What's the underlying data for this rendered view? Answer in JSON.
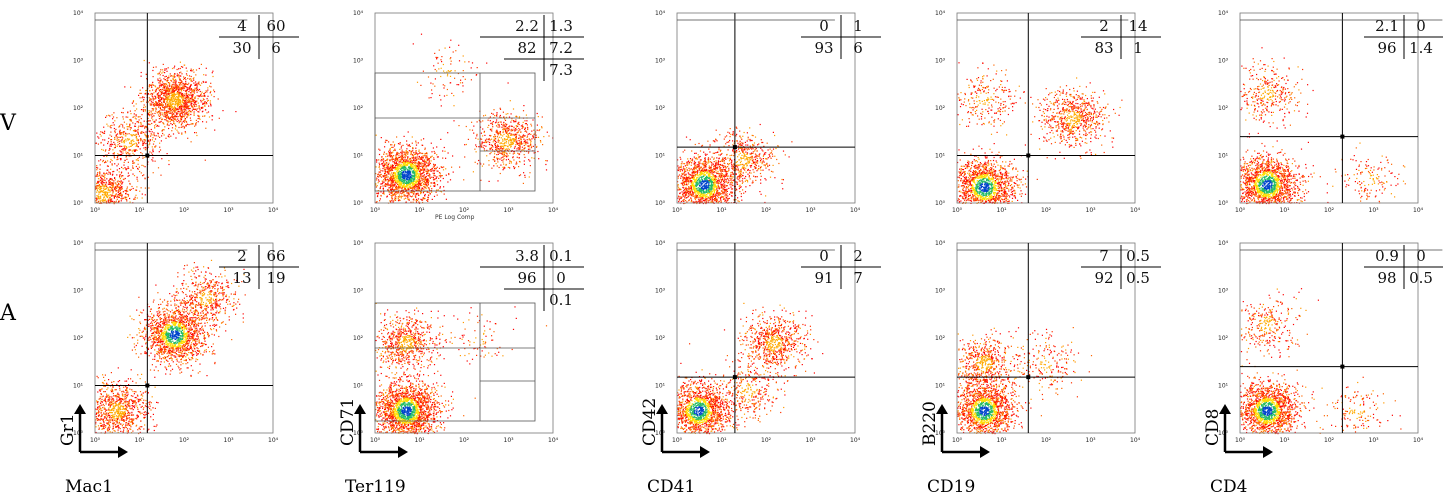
{
  "row_labels": [
    "V",
    "A"
  ],
  "chart_data": [
    {
      "type": "scatter",
      "row": "V",
      "xlabel": "",
      "ylabel": "",
      "x_scale": "log",
      "y_scale": "log",
      "xlim": [
        1,
        10000
      ],
      "ylim": [
        1,
        10000
      ],
      "tick_labels": [
        "10⁰",
        "10¹",
        "10²",
        "10³",
        "10⁴"
      ],
      "gate": {
        "x": 15,
        "y": 10
      },
      "quadrants": {
        "rows": [
          [
            "4",
            "60"
          ],
          [
            "30",
            "6"
          ]
        ]
      },
      "clusters": [
        {
          "x": 1.5,
          "y": 1.6,
          "n": 900
        },
        {
          "x": 60,
          "y": 150,
          "n": 1400
        },
        {
          "x": 6,
          "y": 20,
          "n": 500
        }
      ]
    },
    {
      "type": "scatter",
      "row": "V",
      "xlabel": "",
      "ylabel": "",
      "x_scale": "log",
      "y_scale": "log",
      "xlim": [
        1,
        10000
      ],
      "ylim": [
        1,
        10000
      ],
      "tick_labels": [
        "10⁰",
        "10¹",
        "10²",
        "10³",
        "10⁴"
      ],
      "plot_label": "PE Log Comp",
      "quadrants": {
        "rows": [
          [
            "2.2",
            "1.3"
          ],
          [
            "82",
            "7.2"
          ],
          [
            "",
            "7.3"
          ]
        ]
      },
      "clusters": [
        {
          "x": 5,
          "y": 4,
          "n": 1900,
          "hot": true
        },
        {
          "x": 900,
          "y": 20,
          "n": 700
        },
        {
          "x": 40,
          "y": 600,
          "n": 90
        }
      ]
    },
    {
      "type": "scatter",
      "row": "V",
      "xlabel": "",
      "ylabel": "",
      "x_scale": "log",
      "y_scale": "log",
      "xlim": [
        1,
        10000
      ],
      "ylim": [
        1,
        10000
      ],
      "tick_labels": [
        "10⁰",
        "10¹",
        "10²",
        "10³",
        "10⁴"
      ],
      "gate": {
        "x": 20,
        "y": 15
      },
      "quadrants": {
        "rows": [
          [
            "0",
            "1"
          ],
          [
            "93",
            "6"
          ]
        ]
      },
      "clusters": [
        {
          "x": 4,
          "y": 2.5,
          "n": 1600,
          "hot": true
        },
        {
          "x": 30,
          "y": 8,
          "n": 500
        }
      ]
    },
    {
      "type": "scatter",
      "row": "V",
      "xlabel": "",
      "ylabel": "",
      "x_scale": "log",
      "y_scale": "log",
      "xlim": [
        1,
        10000
      ],
      "ylim": [
        1,
        10000
      ],
      "tick_labels": [
        "10⁰",
        "10¹",
        "10²",
        "10³",
        "10⁴"
      ],
      "gate": {
        "x": 40,
        "y": 10
      },
      "quadrants": {
        "rows": [
          [
            "2",
            "14"
          ],
          [
            "83",
            "1"
          ]
        ]
      },
      "clusters": [
        {
          "x": 4,
          "y": 2.2,
          "n": 1500,
          "hot": true
        },
        {
          "x": 400,
          "y": 60,
          "n": 700
        },
        {
          "x": 4,
          "y": 150,
          "n": 250
        }
      ]
    },
    {
      "type": "scatter",
      "row": "V",
      "xlabel": "",
      "ylabel": "",
      "x_scale": "log",
      "y_scale": "log",
      "xlim": [
        1,
        10000
      ],
      "ylim": [
        1,
        10000
      ],
      "tick_labels": [
        "10⁰",
        "10¹",
        "10²",
        "10³",
        "10⁴"
      ],
      "gate": {
        "x": 200,
        "y": 25
      },
      "quadrants": {
        "rows": [
          [
            "2.1",
            "0"
          ],
          [
            "96",
            "1.4"
          ]
        ]
      },
      "clusters": [
        {
          "x": 4,
          "y": 2.5,
          "n": 1600,
          "hot": true
        },
        {
          "x": 4,
          "y": 200,
          "n": 350
        },
        {
          "x": 800,
          "y": 3,
          "n": 150
        }
      ]
    },
    {
      "type": "scatter",
      "row": "A",
      "xlabel": "Mac1",
      "ylabel": "Gr1",
      "x_scale": "log",
      "y_scale": "log",
      "xlim": [
        1,
        10000
      ],
      "ylim": [
        1,
        10000
      ],
      "tick_labels": [
        "10⁰",
        "10¹",
        "10²",
        "10³",
        "10⁴"
      ],
      "gate": {
        "x": 15,
        "y": 10
      },
      "quadrants": {
        "rows": [
          [
            "2",
            "66"
          ],
          [
            "13",
            "19"
          ]
        ]
      },
      "clusters": [
        {
          "x": 3,
          "y": 3,
          "n": 900
        },
        {
          "x": 60,
          "y": 120,
          "n": 1500,
          "hot": true
        },
        {
          "x": 300,
          "y": 700,
          "n": 500
        }
      ]
    },
    {
      "type": "scatter",
      "row": "A",
      "xlabel": "Ter119",
      "ylabel": "CD71",
      "x_scale": "log",
      "y_scale": "log",
      "xlim": [
        1,
        10000
      ],
      "ylim": [
        1,
        10000
      ],
      "tick_labels": [
        "10⁰",
        "10¹",
        "10²",
        "10³",
        "10⁴"
      ],
      "quadrants": {
        "rows": [
          [
            "3.8",
            "0.1"
          ],
          [
            "96",
            "0"
          ],
          [
            "",
            "0.1"
          ]
        ]
      },
      "clusters": [
        {
          "x": 5,
          "y": 3,
          "n": 1900,
          "hot": true
        },
        {
          "x": 5,
          "y": 80,
          "n": 700
        },
        {
          "x": 200,
          "y": 100,
          "n": 80
        }
      ]
    },
    {
      "type": "scatter",
      "row": "A",
      "xlabel": "CD41",
      "ylabel": "CD42",
      "x_scale": "log",
      "y_scale": "log",
      "xlim": [
        1,
        10000
      ],
      "ylim": [
        1,
        10000
      ],
      "tick_labels": [
        "10⁰",
        "10¹",
        "10²",
        "10³",
        "10⁴"
      ],
      "gate": {
        "x": 20,
        "y": 15
      },
      "quadrants": {
        "rows": [
          [
            "0",
            "2"
          ],
          [
            "91",
            "7"
          ]
        ]
      },
      "clusters": [
        {
          "x": 3,
          "y": 3,
          "n": 1500,
          "hot": true
        },
        {
          "x": 150,
          "y": 80,
          "n": 700
        },
        {
          "x": 40,
          "y": 8,
          "n": 300
        }
      ]
    },
    {
      "type": "scatter",
      "row": "A",
      "xlabel": "CD19",
      "ylabel": "B220",
      "x_scale": "log",
      "y_scale": "log",
      "xlim": [
        1,
        10000
      ],
      "ylim": [
        1,
        10000
      ],
      "tick_labels": [
        "10⁰",
        "10¹",
        "10²",
        "10³",
        "10⁴"
      ],
      "gate": {
        "x": 40,
        "y": 15
      },
      "quadrants": {
        "rows": [
          [
            "7",
            "0.5"
          ],
          [
            "92",
            "0.5"
          ]
        ]
      },
      "clusters": [
        {
          "x": 4,
          "y": 3,
          "n": 1500,
          "hot": true
        },
        {
          "x": 4,
          "y": 30,
          "n": 600
        },
        {
          "x": 100,
          "y": 30,
          "n": 200
        }
      ]
    },
    {
      "type": "scatter",
      "row": "A",
      "xlabel": "CD4",
      "ylabel": "CD8",
      "x_scale": "log",
      "y_scale": "log",
      "xlim": [
        1,
        10000
      ],
      "ylim": [
        1,
        10000
      ],
      "tick_labels": [
        "10⁰",
        "10¹",
        "10²",
        "10³",
        "10⁴"
      ],
      "gate": {
        "x": 200,
        "y": 25
      },
      "quadrants": {
        "rows": [
          [
            "0.9",
            "0"
          ],
          [
            "98",
            "0.5"
          ]
        ]
      },
      "clusters": [
        {
          "x": 4,
          "y": 3,
          "n": 1600,
          "hot": true
        },
        {
          "x": 4,
          "y": 200,
          "n": 300
        },
        {
          "x": 400,
          "y": 3,
          "n": 150
        }
      ]
    }
  ]
}
